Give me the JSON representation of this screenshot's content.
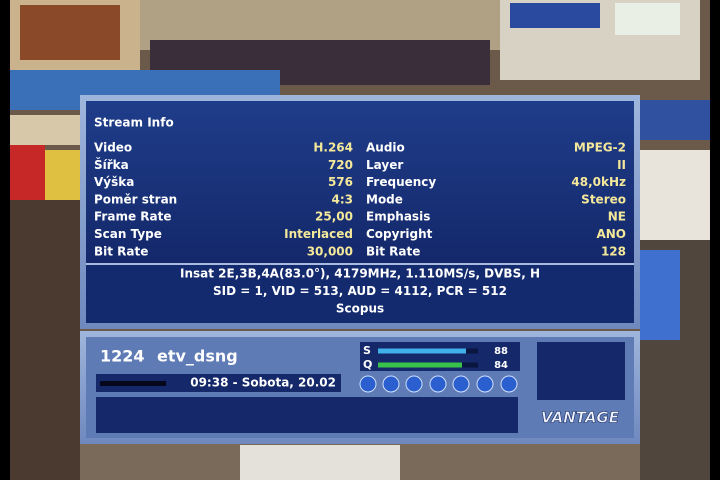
{
  "stream_info": {
    "title": "Stream Info",
    "left": [
      {
        "label": "Video",
        "value": "H.264"
      },
      {
        "label": "Šířka",
        "value": "720"
      },
      {
        "label": "Výška",
        "value": "576"
      },
      {
        "label": "Poměr stran",
        "value": "4:3"
      },
      {
        "label": "Frame Rate",
        "value": "25,00"
      },
      {
        "label": "Scan Type",
        "value": "Interlaced"
      },
      {
        "label": "Bit Rate",
        "value": "30,000"
      }
    ],
    "right": [
      {
        "label": "Audio",
        "value": "MPEG-2"
      },
      {
        "label": "Layer",
        "value": "II"
      },
      {
        "label": "Frequency",
        "value": "48,0kHz"
      },
      {
        "label": "Mode",
        "value": "Stereo"
      },
      {
        "label": "Emphasis",
        "value": "NE"
      },
      {
        "label": "Copyright",
        "value": "ANO"
      },
      {
        "label": "Bit Rate",
        "value": "128"
      }
    ],
    "transponder": [
      "Insat 2E,3B,4A(83.0°), 4179MHz, 1.110MS/s, DVBS, H",
      "SID = 1, VID = 513, AUD = 4112, PCR = 512",
      "Scopus"
    ]
  },
  "channel": {
    "number": "1224",
    "name": "etv_dsng",
    "time": "09:38 - Sobota, 20.02"
  },
  "signal": {
    "s_label": "S",
    "s": 88,
    "q_label": "Q",
    "q": 84
  },
  "logo": "VANTAGE"
}
